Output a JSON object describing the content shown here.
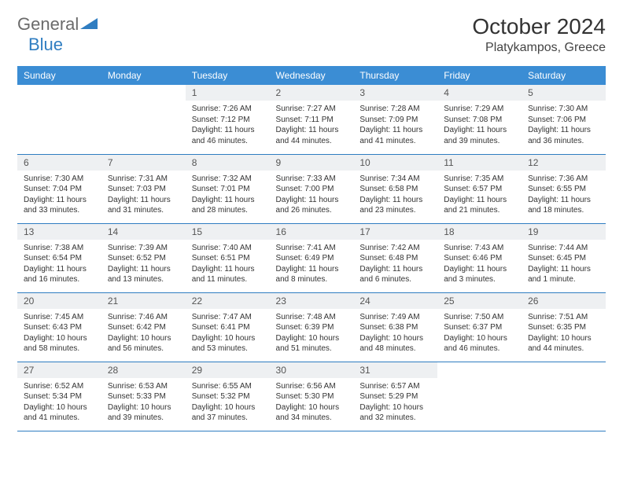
{
  "brand": {
    "text1": "General",
    "text2": "Blue"
  },
  "title": "October 2024",
  "location": "Platykampos, Greece",
  "header_bg": "#3b8dd4",
  "border_color": "#2f7dc1",
  "daynum_bg": "#eef0f2",
  "dayHeaders": [
    "Sunday",
    "Monday",
    "Tuesday",
    "Wednesday",
    "Thursday",
    "Friday",
    "Saturday"
  ],
  "weeks": [
    [
      null,
      null,
      {
        "n": "1",
        "sr": "7:26 AM",
        "ss": "7:12 PM",
        "dl": "11 hours and 46 minutes."
      },
      {
        "n": "2",
        "sr": "7:27 AM",
        "ss": "7:11 PM",
        "dl": "11 hours and 44 minutes."
      },
      {
        "n": "3",
        "sr": "7:28 AM",
        "ss": "7:09 PM",
        "dl": "11 hours and 41 minutes."
      },
      {
        "n": "4",
        "sr": "7:29 AM",
        "ss": "7:08 PM",
        "dl": "11 hours and 39 minutes."
      },
      {
        "n": "5",
        "sr": "7:30 AM",
        "ss": "7:06 PM",
        "dl": "11 hours and 36 minutes."
      }
    ],
    [
      {
        "n": "6",
        "sr": "7:30 AM",
        "ss": "7:04 PM",
        "dl": "11 hours and 33 minutes."
      },
      {
        "n": "7",
        "sr": "7:31 AM",
        "ss": "7:03 PM",
        "dl": "11 hours and 31 minutes."
      },
      {
        "n": "8",
        "sr": "7:32 AM",
        "ss": "7:01 PM",
        "dl": "11 hours and 28 minutes."
      },
      {
        "n": "9",
        "sr": "7:33 AM",
        "ss": "7:00 PM",
        "dl": "11 hours and 26 minutes."
      },
      {
        "n": "10",
        "sr": "7:34 AM",
        "ss": "6:58 PM",
        "dl": "11 hours and 23 minutes."
      },
      {
        "n": "11",
        "sr": "7:35 AM",
        "ss": "6:57 PM",
        "dl": "11 hours and 21 minutes."
      },
      {
        "n": "12",
        "sr": "7:36 AM",
        "ss": "6:55 PM",
        "dl": "11 hours and 18 minutes."
      }
    ],
    [
      {
        "n": "13",
        "sr": "7:38 AM",
        "ss": "6:54 PM",
        "dl": "11 hours and 16 minutes."
      },
      {
        "n": "14",
        "sr": "7:39 AM",
        "ss": "6:52 PM",
        "dl": "11 hours and 13 minutes."
      },
      {
        "n": "15",
        "sr": "7:40 AM",
        "ss": "6:51 PM",
        "dl": "11 hours and 11 minutes."
      },
      {
        "n": "16",
        "sr": "7:41 AM",
        "ss": "6:49 PM",
        "dl": "11 hours and 8 minutes."
      },
      {
        "n": "17",
        "sr": "7:42 AM",
        "ss": "6:48 PM",
        "dl": "11 hours and 6 minutes."
      },
      {
        "n": "18",
        "sr": "7:43 AM",
        "ss": "6:46 PM",
        "dl": "11 hours and 3 minutes."
      },
      {
        "n": "19",
        "sr": "7:44 AM",
        "ss": "6:45 PM",
        "dl": "11 hours and 1 minute."
      }
    ],
    [
      {
        "n": "20",
        "sr": "7:45 AM",
        "ss": "6:43 PM",
        "dl": "10 hours and 58 minutes."
      },
      {
        "n": "21",
        "sr": "7:46 AM",
        "ss": "6:42 PM",
        "dl": "10 hours and 56 minutes."
      },
      {
        "n": "22",
        "sr": "7:47 AM",
        "ss": "6:41 PM",
        "dl": "10 hours and 53 minutes."
      },
      {
        "n": "23",
        "sr": "7:48 AM",
        "ss": "6:39 PM",
        "dl": "10 hours and 51 minutes."
      },
      {
        "n": "24",
        "sr": "7:49 AM",
        "ss": "6:38 PM",
        "dl": "10 hours and 48 minutes."
      },
      {
        "n": "25",
        "sr": "7:50 AM",
        "ss": "6:37 PM",
        "dl": "10 hours and 46 minutes."
      },
      {
        "n": "26",
        "sr": "7:51 AM",
        "ss": "6:35 PM",
        "dl": "10 hours and 44 minutes."
      }
    ],
    [
      {
        "n": "27",
        "sr": "6:52 AM",
        "ss": "5:34 PM",
        "dl": "10 hours and 41 minutes."
      },
      {
        "n": "28",
        "sr": "6:53 AM",
        "ss": "5:33 PM",
        "dl": "10 hours and 39 minutes."
      },
      {
        "n": "29",
        "sr": "6:55 AM",
        "ss": "5:32 PM",
        "dl": "10 hours and 37 minutes."
      },
      {
        "n": "30",
        "sr": "6:56 AM",
        "ss": "5:30 PM",
        "dl": "10 hours and 34 minutes."
      },
      {
        "n": "31",
        "sr": "6:57 AM",
        "ss": "5:29 PM",
        "dl": "10 hours and 32 minutes."
      },
      null,
      null
    ]
  ],
  "labels": {
    "sunrise": "Sunrise: ",
    "sunset": "Sunset: ",
    "daylight": "Daylight: "
  }
}
